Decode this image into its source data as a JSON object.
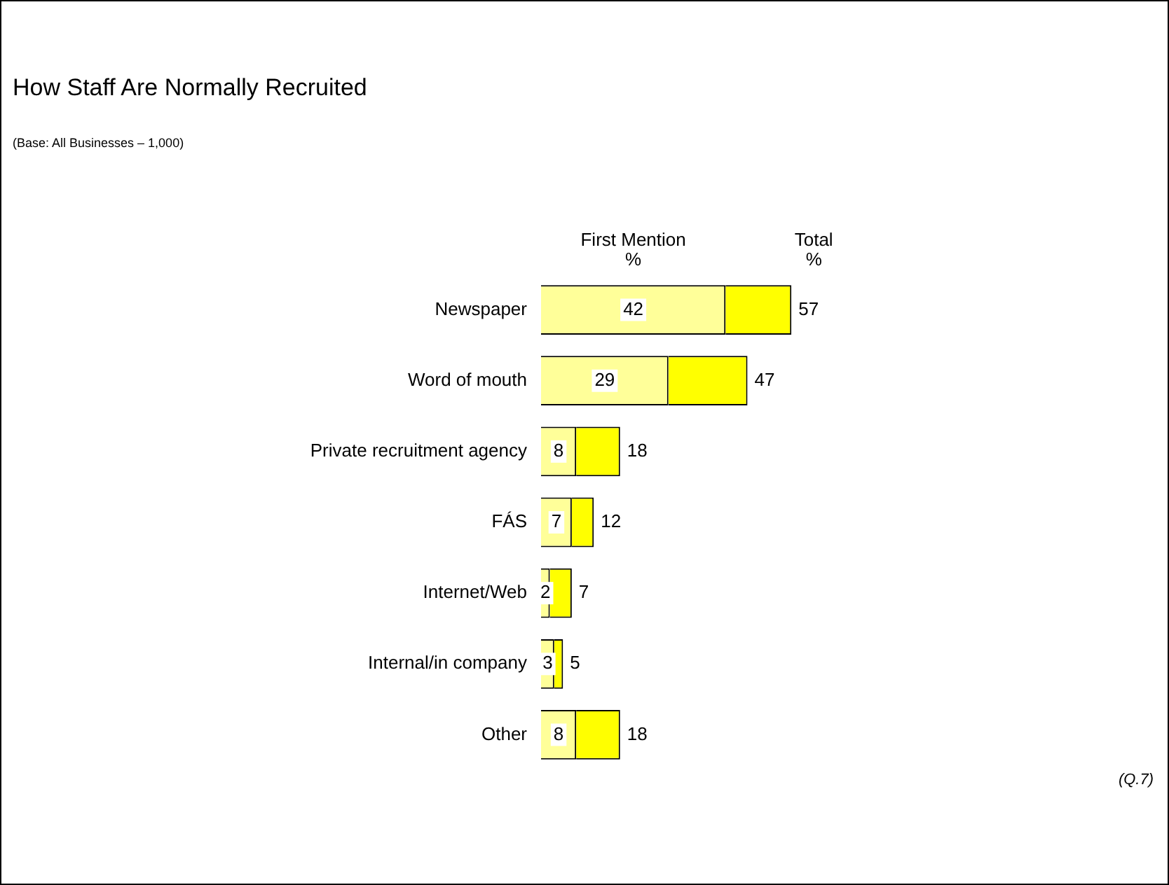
{
  "chart_data": {
    "type": "bar",
    "orientation": "horizontal",
    "stacked": true,
    "title": "How Staff Are Normally Recruited",
    "subtitle": "(Base: All Businesses – 1,000)",
    "categories": [
      "Newspaper",
      "Word of mouth",
      "Private recruitment agency",
      "FÁS",
      "Internet/Web",
      "Internal/in company",
      "Other"
    ],
    "series": [
      {
        "color": "#ffff99",
        "values": [
          42,
          29,
          8,
          7,
          2,
          3,
          8
        ],
        "value_labels": [
          "42",
          "29",
          "8",
          "7",
          "2",
          "3",
          "8"
        ]
      },
      {
        "color": "#ffff00",
        "values": [
          15,
          18,
          10,
          5,
          5,
          2,
          10
        ]
      }
    ],
    "totals": [
      "57",
      "47",
      "18",
      "12",
      "7",
      "5",
      "18"
    ],
    "tick_labels": false,
    "legend": false,
    "annotations": [
      "First Mention %",
      "Total %",
      "(Q.7)"
    ]
  }
}
